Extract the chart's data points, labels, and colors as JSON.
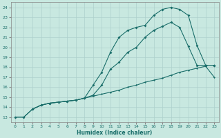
{
  "xlabel": "Humidex (Indice chaleur)",
  "xlim": [
    -0.5,
    23.5
  ],
  "ylim": [
    12.5,
    24.5
  ],
  "xticks": [
    0,
    1,
    2,
    3,
    4,
    5,
    6,
    7,
    8,
    9,
    10,
    11,
    12,
    13,
    14,
    15,
    16,
    17,
    18,
    19,
    20,
    21,
    22,
    23
  ],
  "yticks": [
    13,
    14,
    15,
    16,
    17,
    18,
    19,
    20,
    21,
    22,
    23,
    24
  ],
  "bg_color": "#c8e8e0",
  "grid_color": "#aed0cc",
  "line_color": "#1a6e6a",
  "line1_x": [
    0,
    1,
    2,
    3,
    4,
    5,
    6,
    7,
    8,
    9,
    10,
    11,
    12,
    13,
    14,
    15,
    16,
    17,
    18,
    19,
    20,
    21,
    22,
    23
  ],
  "line1_y": [
    13,
    13,
    13.8,
    14.2,
    14.4,
    14.5,
    14.6,
    14.7,
    14.9,
    15.1,
    15.3,
    15.5,
    15.7,
    16.0,
    16.2,
    16.5,
    16.7,
    16.9,
    17.2,
    17.5,
    17.7,
    17.9,
    18.1,
    17.0
  ],
  "line2_x": [
    0,
    1,
    2,
    3,
    4,
    5,
    6,
    7,
    8,
    9,
    10,
    11,
    12,
    13,
    14,
    15,
    16,
    17,
    18,
    19,
    20,
    21,
    22,
    23
  ],
  "line2_y": [
    13,
    13,
    13.8,
    14.2,
    14.4,
    14.5,
    14.6,
    14.7,
    14.9,
    15.2,
    16.2,
    17.8,
    18.5,
    19.5,
    20.0,
    21.0,
    21.7,
    22.1,
    22.5,
    22.0,
    20.1,
    18.2,
    18.2,
    18.2
  ],
  "line3_x": [
    2,
    3,
    4,
    5,
    6,
    7,
    8,
    9,
    10,
    11,
    12,
    13,
    14,
    15,
    16,
    17,
    18,
    19,
    20,
    21,
    22,
    23
  ],
  "line3_y": [
    13.8,
    14.2,
    14.4,
    14.5,
    14.6,
    14.7,
    14.9,
    16.2,
    17.5,
    19.5,
    21.0,
    21.7,
    22.0,
    22.2,
    23.2,
    23.8,
    24.0,
    23.8,
    23.2,
    20.2,
    18.2,
    18.2
  ]
}
